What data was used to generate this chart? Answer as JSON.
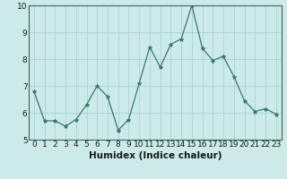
{
  "x": [
    0,
    1,
    2,
    3,
    4,
    5,
    6,
    7,
    8,
    9,
    10,
    11,
    12,
    13,
    14,
    15,
    16,
    17,
    18,
    19,
    20,
    21,
    22,
    23
  ],
  "y": [
    6.8,
    5.7,
    5.7,
    5.5,
    5.75,
    6.3,
    7.0,
    6.6,
    5.35,
    5.75,
    7.1,
    8.45,
    7.7,
    8.55,
    8.75,
    10.0,
    8.4,
    7.95,
    8.1,
    7.35,
    6.45,
    6.05,
    6.15,
    5.95
  ],
  "line_color": "#2e7d6e",
  "marker": "*",
  "marker_size": 3,
  "bg_color": "#cceae7",
  "grid_color": "#aad4d0",
  "xlabel": "Humidex (Indice chaleur)",
  "ylim": [
    5,
    10
  ],
  "xlim": [
    -0.5,
    23.5
  ],
  "yticks": [
    5,
    6,
    7,
    8,
    9,
    10
  ],
  "xticks": [
    0,
    1,
    2,
    3,
    4,
    5,
    6,
    7,
    8,
    9,
    10,
    11,
    12,
    13,
    14,
    15,
    16,
    17,
    18,
    19,
    20,
    21,
    22,
    23
  ],
  "tick_fontsize": 6.5,
  "xlabel_fontsize": 7.5,
  "axis_color": "#2e6b60",
  "spine_color": "#2e6b60"
}
